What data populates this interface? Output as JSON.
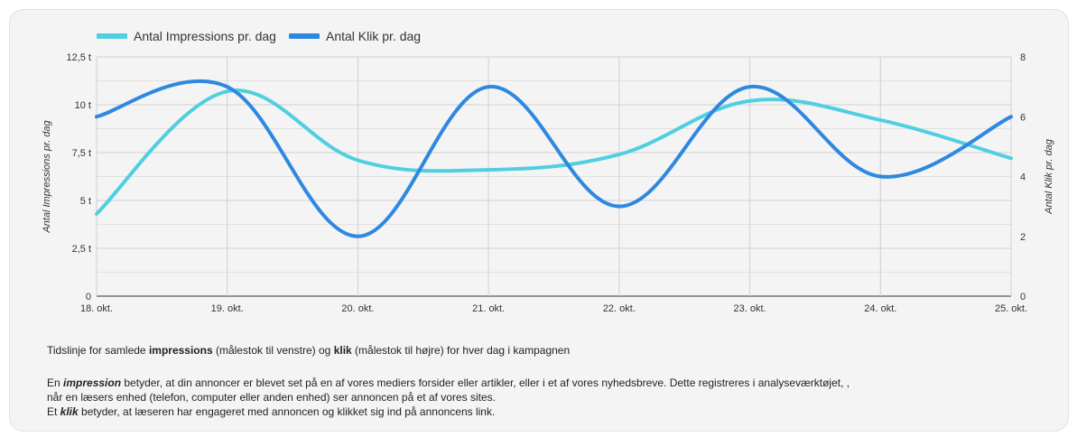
{
  "chart_data": {
    "type": "line",
    "title": "",
    "legend": {
      "placement": "top-left",
      "items": [
        "Antal Impressions pr. dag",
        "Antal Klik pr. dag"
      ]
    },
    "categories": [
      "18. okt.",
      "19. okt.",
      "20. okt.",
      "21. okt.",
      "22. okt.",
      "23. okt.",
      "24. okt.",
      "25. okt."
    ],
    "series": [
      {
        "name": "Antal Impressions pr. dag",
        "axis": "left",
        "color": "#4fcfe0",
        "values": [
          4300,
          10700,
          7100,
          6600,
          7400,
          10200,
          9200,
          7200
        ]
      },
      {
        "name": "Antal Klik pr. dag",
        "axis": "right",
        "color": "#2f88e0",
        "values": [
          6,
          7,
          2,
          7,
          3,
          7,
          4,
          6
        ]
      }
    ],
    "y_left": {
      "label": "Antal Impressions pr. dag",
      "ylim": [
        0,
        12500
      ],
      "ticks": [
        0,
        2500,
        5000,
        7500,
        10000,
        12500
      ],
      "tick_labels": [
        "0",
        "2,5 t",
        "5 t",
        "7,5 t",
        "10 t",
        "12,5 t"
      ]
    },
    "y_right": {
      "label": "Antal Klik pr. dag",
      "ylim": [
        0,
        8
      ],
      "ticks": [
        0,
        2,
        4,
        6,
        8
      ],
      "tick_labels": [
        "0",
        "2",
        "4",
        "6",
        "8"
      ]
    },
    "grid": true,
    "curve": "smooth"
  },
  "caption": {
    "pre": "Tidslinje for samlede ",
    "b1": "impressions",
    "mid": " (målestok til venstre) og ",
    "b2": "klik",
    "post": " (målestok til højre) for hver dag i kampagnen"
  },
  "description": {
    "line1_pre": "En ",
    "line1_b": "impression",
    "line1_post": " betyder, at din annoncer er blevet set på en af vores mediers forsider eller artikler, eller i et af vores nyhedsbreve. Dette registreres i analyseværktøjet, ,",
    "line2": "når en læsers enhed (telefon, computer eller anden enhed) ser annoncen på et af vores sites.",
    "line3_pre": "Et ",
    "line3_b": "klik",
    "line3_post": " betyder, at læseren har engageret med annoncen og klikket sig ind på annoncens link."
  }
}
